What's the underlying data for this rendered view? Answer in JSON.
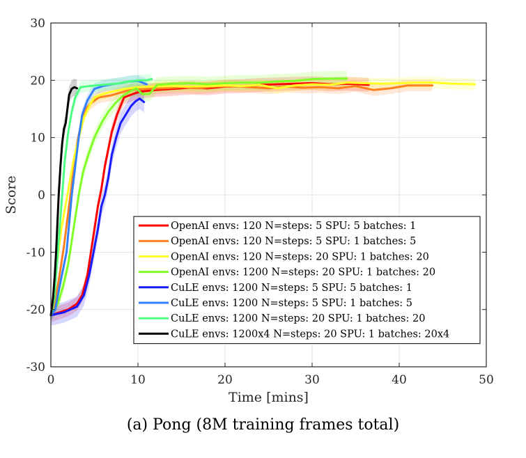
{
  "caption": "(a) Pong (8M training frames total)",
  "chart_data": {
    "type": "line",
    "title": "",
    "xlabel": "Time [mins]",
    "ylabel": "Score",
    "xlim": [
      0,
      50
    ],
    "ylim": [
      -30,
      30
    ],
    "xticks": [
      0,
      10,
      20,
      30,
      40,
      50
    ],
    "yticks": [
      -30,
      -20,
      -10,
      0,
      10,
      20,
      30
    ],
    "grid": true,
    "legend_position": "bottom-right",
    "series": [
      {
        "name": "OpenAI envs: 120 N=steps: 5 SPU: 5 batches: 1",
        "color": "#ff0000",
        "band": 1.2,
        "x": [
          0,
          1,
          2,
          3,
          3.6,
          4.2,
          4.6,
          5.0,
          5.4,
          5.8,
          6.2,
          6.6,
          7.0,
          7.6,
          8.4,
          9.4,
          10.2,
          12,
          14,
          16,
          18,
          20,
          22,
          24,
          26,
          28,
          30,
          32,
          34,
          36.5
        ],
        "y": [
          -21,
          -20.5,
          -20,
          -19,
          -17.5,
          -14,
          -10,
          -6,
          -2,
          1,
          5,
          8,
          11,
          14,
          17,
          17.6,
          18,
          18.3,
          18.5,
          18.7,
          18.6,
          18.9,
          19,
          19.2,
          19.3,
          19.4,
          19.5,
          19.3,
          19.4,
          19.2
        ]
      },
      {
        "name": "OpenAI envs: 120 N=steps: 5 SPU: 1 batches: 5",
        "color": "#ff7f1f",
        "band": 1.0,
        "x": [
          0,
          0.5,
          1.0,
          1.5,
          2.0,
          2.5,
          3.0,
          3.5,
          4.0,
          4.6,
          5.5,
          7,
          9,
          11,
          13,
          15,
          17,
          19,
          21,
          23,
          25,
          27,
          29,
          31,
          33,
          35,
          37,
          39,
          41,
          43.8
        ],
        "y": [
          -21,
          -18.5,
          -14,
          -9,
          -3,
          3,
          9,
          12.5,
          15,
          16,
          17,
          17.4,
          18.3,
          18.5,
          18.6,
          18.8,
          18.6,
          18.9,
          19,
          18.8,
          18.6,
          18.9,
          18.7,
          18.8,
          18.6,
          19,
          18.3,
          18.6,
          19.1,
          19.1
        ]
      },
      {
        "name": "OpenAI envs: 120 N=steps: 20 SPU: 1 batches: 20",
        "color": "#ffff26",
        "band": 1.0,
        "x": [
          0,
          0.3,
          0.7,
          1.2,
          1.9,
          2.6,
          3.2,
          3.8,
          4.4,
          5.0,
          6,
          7,
          8.5,
          10,
          12,
          14,
          16,
          18,
          20,
          22,
          24,
          26,
          28,
          30,
          32,
          34,
          36,
          38,
          40,
          42,
          44,
          46,
          48.7
        ],
        "y": [
          -21,
          -18,
          -12,
          -6,
          0,
          6,
          10,
          13.5,
          15.5,
          17,
          17.6,
          18,
          18.5,
          18.8,
          18.9,
          19,
          18.9,
          19,
          19.1,
          19,
          19.2,
          18.6,
          19.1,
          19.3,
          19.2,
          19.6,
          19.5,
          19.4,
          19.5,
          19.6,
          19.6,
          19.4,
          19.3
        ]
      },
      {
        "name": "OpenAI envs: 1200 N=steps: 20 SPU: 1 batches: 20",
        "color": "#80ff26",
        "band": 1.3,
        "x": [
          0,
          0.8,
          1.4,
          2.0,
          2.4,
          2.8,
          3.2,
          3.7,
          4.3,
          5.0,
          5.8,
          6.6,
          7.4,
          8.2,
          9.0,
          9.8,
          10.5,
          11.3,
          12.2,
          14,
          16,
          18,
          20,
          22,
          24,
          26,
          28,
          30,
          32,
          34
        ],
        "y": [
          -21,
          -19,
          -16,
          -12,
          -8,
          -4,
          0,
          4,
          7,
          10,
          12.5,
          14.5,
          16,
          17.2,
          18,
          18.6,
          17.6,
          17.6,
          19.2,
          19.4,
          19.5,
          19.3,
          19.5,
          19.6,
          19.6,
          19.8,
          19.9,
          20.2,
          20.3,
          20.3
        ]
      },
      {
        "name": "CuLE envs: 1200 N=steps: 5 SPU: 5 batches: 1",
        "color": "#1a1aff",
        "band": 1.8,
        "x": [
          0,
          1.5,
          3,
          3.8,
          4.4,
          4.9,
          5.4,
          5.8,
          6.2,
          6.6,
          7.0,
          7.5,
          8.0,
          8.6,
          9.2,
          9.7,
          10.2,
          10.7
        ],
        "y": [
          -21,
          -20.5,
          -19.5,
          -17.5,
          -14,
          -10,
          -6,
          -2,
          0,
          3,
          7,
          10,
          12.5,
          14,
          15.5,
          16.3,
          16.8,
          16.2
        ]
      },
      {
        "name": "CuLE envs: 1200 N=steps: 5 SPU: 1 batches: 5",
        "color": "#3380ff",
        "band": 1.0,
        "x": [
          0,
          0.5,
          1.0,
          1.4,
          1.8,
          2.1,
          2.4,
          2.8,
          3.2,
          3.6,
          4.2,
          5.0,
          6,
          7,
          8,
          9,
          10,
          11
        ],
        "y": [
          -21,
          -20,
          -16,
          -13,
          -10,
          -5,
          0,
          5,
          10,
          14,
          16.5,
          18.5,
          19,
          19.3,
          19.5,
          19.8,
          19.9,
          19.3
        ]
      },
      {
        "name": "CuLE envs: 1200 N=steps: 20 SPU: 1 batches: 20",
        "color": "#4dff80",
        "band": 1.0,
        "x": [
          0,
          0.4,
          0.7,
          1.0,
          1.3,
          1.6,
          2.0,
          2.4,
          2.8,
          3.4,
          4.5,
          6,
          7.5,
          9,
          10,
          11,
          11.6
        ],
        "y": [
          -21,
          -18,
          -12,
          -6,
          0,
          6,
          11,
          14.5,
          17,
          18.8,
          19,
          19.2,
          19.4,
          19.8,
          20,
          20,
          20.2
        ]
      },
      {
        "name": "CuLE envs: 1200x4 N=steps: 20 SPU: 1 batches: 20x4",
        "color": "#000000",
        "band": 1.5,
        "x": [
          0,
          0.25,
          0.45,
          0.6,
          0.75,
          0.9,
          1.1,
          1.3,
          1.5,
          1.7,
          1.9,
          2.1,
          2.4,
          2.7,
          3.0
        ],
        "y": [
          -21,
          -18,
          -14,
          -10,
          -5,
          0,
          5,
          9,
          11.5,
          12.5,
          15,
          17.5,
          18.5,
          18.8,
          18.6
        ]
      }
    ]
  }
}
